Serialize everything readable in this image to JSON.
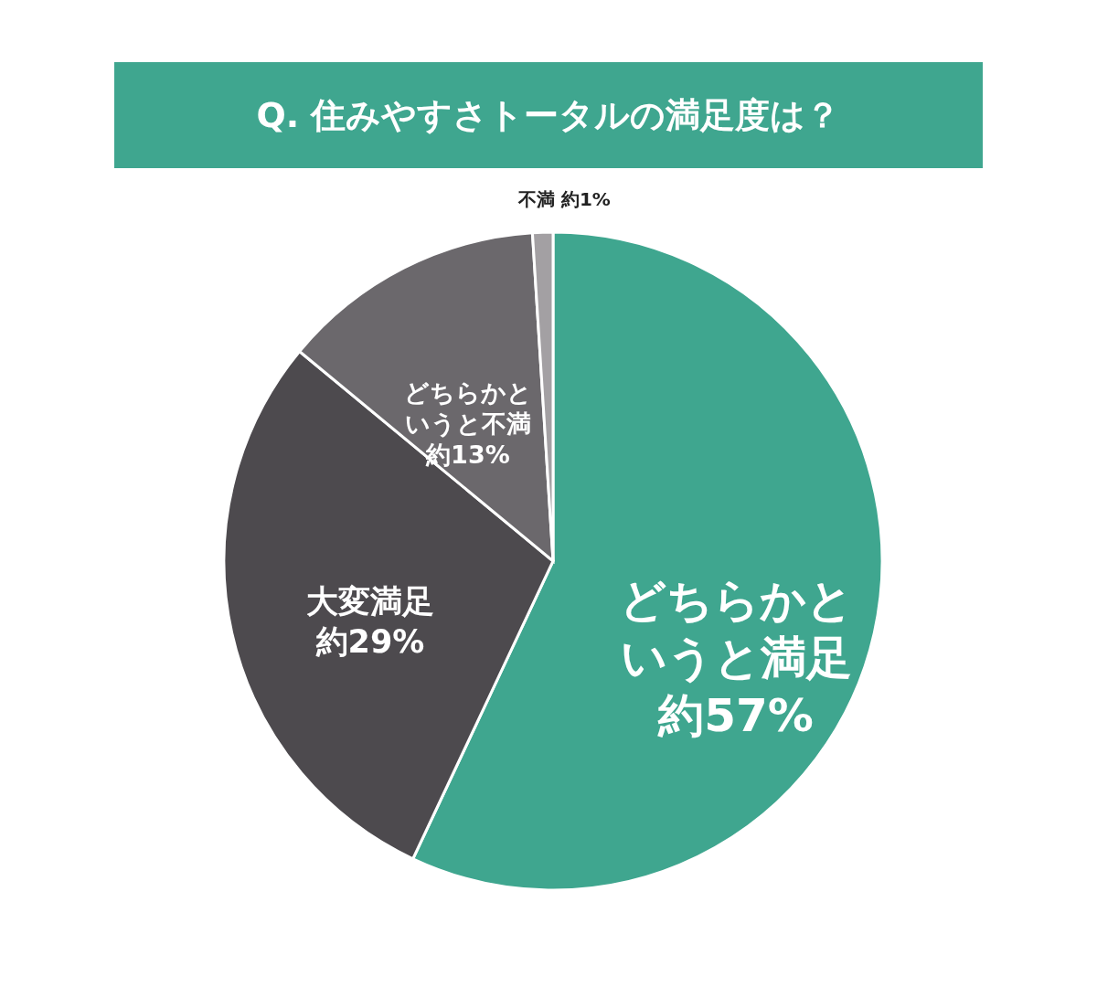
{
  "chart_data": {
    "type": "pie",
    "title": "Q. 住みやすさトータルの満足度は？",
    "categories": [
      "どちらかというと満足",
      "大変満足",
      "どちらかというと不満",
      "不満"
    ],
    "values": [
      57,
      29,
      13,
      1
    ],
    "value_labels": [
      "約57%",
      "約29%",
      "約13%",
      "約1%"
    ],
    "colors": [
      "#3fa68f",
      "#4d4a4e",
      "#6b686c",
      "#a3a0a3"
    ],
    "legend": false
  }
}
